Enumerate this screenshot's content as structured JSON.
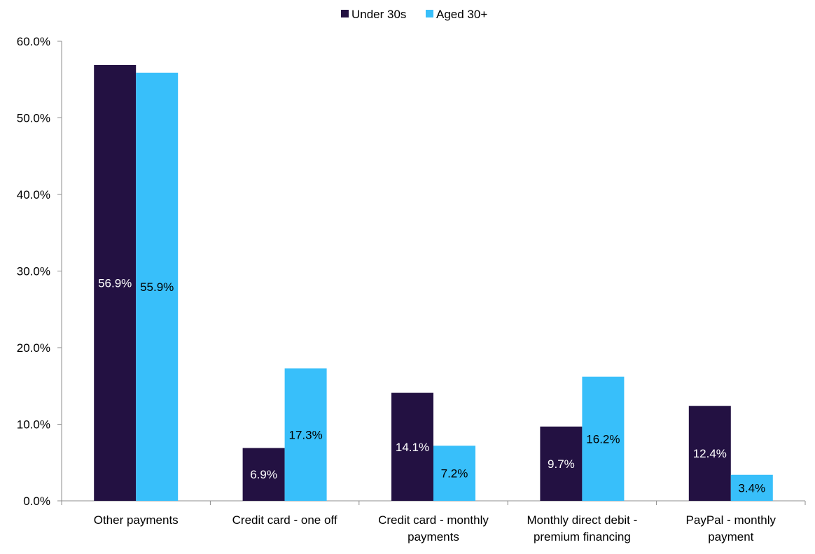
{
  "chart_data": {
    "type": "bar",
    "title": "",
    "xlabel": "",
    "ylabel": "",
    "categories": [
      "Other payments",
      "Credit card - one off",
      "Credit card - monthly payments",
      "Monthly direct debit - premium financing",
      "PayPal - monthly payment"
    ],
    "category_lines": [
      [
        "Other payments"
      ],
      [
        "Credit card - one off"
      ],
      [
        "Credit card - monthly",
        "payments"
      ],
      [
        "Monthly direct debit -",
        "premium financing"
      ],
      [
        "PayPal - monthly",
        "payment"
      ]
    ],
    "series": [
      {
        "name": "Under 30s",
        "color": "#231142",
        "label_color": "#ffffff",
        "values": [
          56.9,
          6.9,
          14.1,
          9.7,
          12.4
        ],
        "labels": [
          "56.9%",
          "6.9%",
          "14.1%",
          "9.7%",
          "12.4%"
        ]
      },
      {
        "name": "Aged 30+",
        "color": "#38BFFA",
        "label_color": "#000000",
        "values": [
          55.9,
          17.3,
          7.2,
          16.2,
          3.4
        ],
        "labels": [
          "55.9%",
          "17.3%",
          "7.2%",
          "16.2%",
          "3.4%"
        ]
      }
    ],
    "ylim": [
      0,
      60
    ],
    "yticks": [
      0,
      10,
      20,
      30,
      40,
      50,
      60
    ],
    "ytick_labels": [
      "0.0%",
      "10.0%",
      "20.0%",
      "30.0%",
      "40.0%",
      "50.0%",
      "60.0%"
    ],
    "legend_position": "top-center",
    "grid": false
  }
}
